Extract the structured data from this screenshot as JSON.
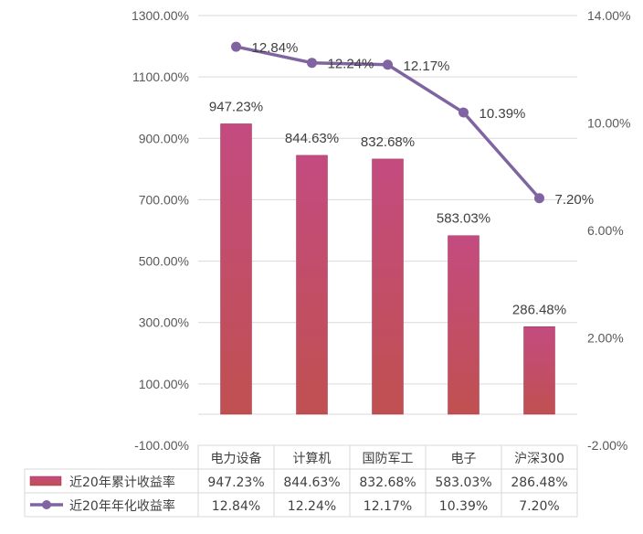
{
  "chart_data": {
    "type": "bar+line",
    "categories": [
      "电力设备",
      "计算机",
      "国防军工",
      "电子",
      "沪深300"
    ],
    "series": [
      {
        "name": "近20年累计收益率",
        "type": "bar",
        "axis": "left",
        "color": "#c04b6e",
        "values": [
          947.23,
          844.63,
          832.68,
          583.03,
          286.48
        ],
        "labels": [
          "947.23%",
          "844.63%",
          "832.68%",
          "583.03%",
          "286.48%"
        ]
      },
      {
        "name": "近20年年化收益率",
        "type": "line",
        "axis": "right",
        "color": "#8064a2",
        "values": [
          12.84,
          12.24,
          12.17,
          10.39,
          7.2
        ],
        "labels": [
          "12.84%",
          "12.24%",
          "12.17%",
          "10.39%",
          "7.20%"
        ]
      }
    ],
    "y_left": {
      "min": -100,
      "max": 1300,
      "ticks": [
        -100,
        100,
        300,
        500,
        700,
        900,
        1100,
        1300
      ],
      "tick_labels": [
        "-100.00%",
        "100.00%",
        "300.00%",
        "500.00%",
        "700.00%",
        "900.00%",
        "1100.00%",
        "1300.00%"
      ]
    },
    "y_right": {
      "min": -2,
      "max": 14,
      "ticks": [
        -2,
        2,
        6,
        10,
        14
      ],
      "tick_labels": [
        "-2.00%",
        "2.00%",
        "6.00%",
        "10.00%",
        "14.00%"
      ]
    },
    "gridlines": true,
    "legend": "data-table-bottom"
  }
}
